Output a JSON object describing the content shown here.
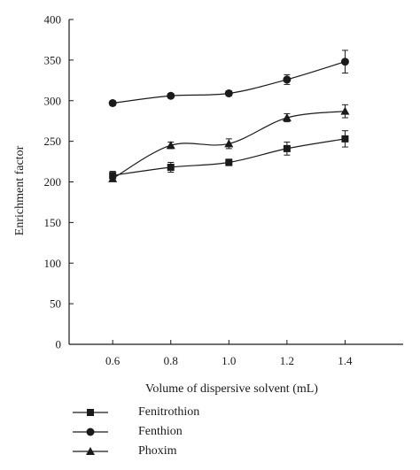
{
  "chart_data": {
    "type": "line",
    "xlabel": "Volume of dispersive solvent (mL)",
    "ylabel": "Enrichment factor",
    "x": [
      0.6,
      0.8,
      1.0,
      1.2,
      1.4
    ],
    "x_tick_labels": [
      "0.6",
      "0.8",
      "1.0",
      "1.2",
      "1.4"
    ],
    "y_tick_labels": [
      "0",
      "50",
      "100",
      "150",
      "200",
      "250",
      "300",
      "350",
      "400"
    ],
    "xlim": [
      0.45,
      1.6
    ],
    "ylim": [
      0,
      400
    ],
    "grid": false,
    "legend_position": "bottom-left",
    "series": [
      {
        "name": "Fenitrothion",
        "marker": "square",
        "values": [
          208,
          218,
          224,
          241,
          253
        ],
        "errors": [
          5,
          6,
          4,
          8,
          10
        ]
      },
      {
        "name": "Fenthion",
        "marker": "circle",
        "values": [
          297,
          306,
          309,
          326,
          348
        ],
        "errors": [
          3,
          3,
          3,
          6,
          14
        ]
      },
      {
        "name": "Phoxim",
        "marker": "triangle",
        "values": [
          204,
          245,
          247,
          279,
          287
        ],
        "errors": [
          3,
          4,
          6,
          5,
          8
        ]
      }
    ]
  },
  "colors": {
    "ink": "#1a1a1a",
    "background": "#ffffff"
  }
}
